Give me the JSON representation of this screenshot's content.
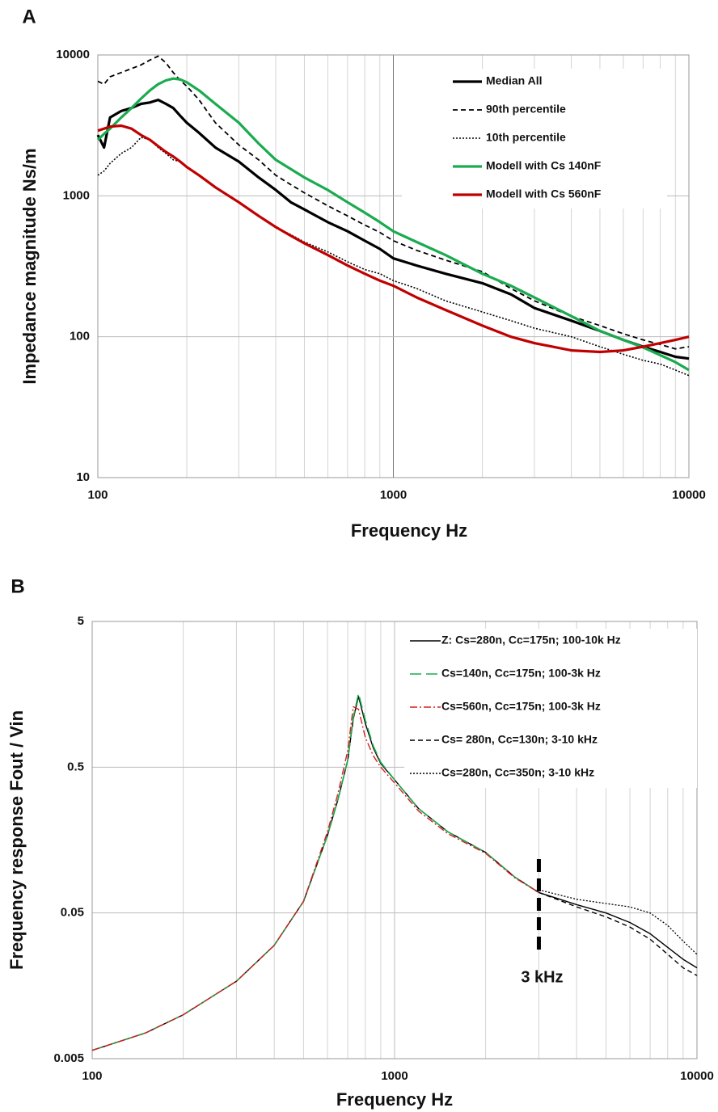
{
  "chart_data": [
    {
      "type": "line",
      "panel_label": "A",
      "x_label": "Frequency Hz",
      "y_label": "Impedance magnitude Ns/m",
      "xscale": "log",
      "yscale": "log",
      "grid": true,
      "legend": "upper right",
      "xlim": [
        100,
        10000
      ],
      "ylim": [
        10,
        10000
      ],
      "xticks": [
        100,
        1000,
        10000
      ],
      "yticks": [
        10,
        100,
        1000,
        10000
      ],
      "x_minor_ticks": [
        200,
        300,
        400,
        500,
        600,
        700,
        800,
        900,
        2000,
        3000,
        4000,
        5000,
        6000,
        7000,
        8000,
        9000
      ],
      "x": [
        100,
        105,
        110,
        120,
        130,
        140,
        150,
        160,
        170,
        180,
        190,
        200,
        220,
        250,
        300,
        350,
        400,
        450,
        500,
        600,
        700,
        800,
        900,
        1000,
        1200,
        1500,
        2000,
        2500,
        3000,
        4000,
        5000,
        6000,
        7000,
        8000,
        9000,
        10000
      ],
      "series": [
        {
          "name": "Median All",
          "color": "#000000",
          "dash": "solid",
          "linewidth": 3.2,
          "values": [
            2700,
            2200,
            3600,
            4000,
            4200,
            4500,
            4600,
            4800,
            4500,
            4200,
            3700,
            3300,
            2800,
            2200,
            1750,
            1350,
            1100,
            900,
            800,
            650,
            560,
            480,
            420,
            360,
            320,
            280,
            240,
            200,
            160,
            130,
            110,
            95,
            85,
            78,
            72,
            70
          ]
        },
        {
          "name": "90th percentile",
          "color": "#000000",
          "dash": "dashed",
          "linewidth": 1.8,
          "values": [
            6500,
            6200,
            7000,
            7500,
            8000,
            8500,
            9200,
            9800,
            8800,
            7500,
            6600,
            6000,
            4800,
            3300,
            2300,
            1800,
            1400,
            1200,
            1050,
            850,
            720,
            620,
            550,
            480,
            410,
            350,
            290,
            220,
            180,
            140,
            120,
            105,
            95,
            88,
            82,
            85
          ]
        },
        {
          "name": "10th percentile",
          "color": "#000000",
          "dash": "dotted",
          "linewidth": 1.6,
          "values": [
            1400,
            1500,
            1700,
            2000,
            2200,
            2600,
            2500,
            2200,
            2000,
            1800,
            1750,
            1600,
            1400,
            1150,
            900,
            720,
            600,
            530,
            470,
            400,
            340,
            300,
            280,
            250,
            220,
            180,
            150,
            130,
            115,
            100,
            85,
            75,
            68,
            64,
            58,
            53
          ]
        },
        {
          "name": "Modell with Cs 140nF",
          "color": "#1aab4f",
          "dash": "solid",
          "linewidth": 3.2,
          "values": [
            2500,
            2750,
            3000,
            3600,
            4200,
            4900,
            5600,
            6200,
            6600,
            6800,
            6700,
            6400,
            5600,
            4500,
            3300,
            2350,
            1800,
            1550,
            1350,
            1100,
            900,
            760,
            650,
            560,
            470,
            380,
            280,
            230,
            190,
            140,
            110,
            95,
            84,
            74,
            66,
            58
          ]
        },
        {
          "name": "Modell with Cs 560nF",
          "color": "#c00000",
          "dash": "solid",
          "linewidth": 3.2,
          "values": [
            2900,
            3000,
            3100,
            3150,
            3000,
            2700,
            2500,
            2250,
            2050,
            1900,
            1750,
            1600,
            1400,
            1150,
            900,
            720,
            600,
            520,
            460,
            380,
            320,
            280,
            250,
            230,
            190,
            155,
            120,
            100,
            90,
            80,
            78,
            80,
            85,
            90,
            95,
            100
          ]
        }
      ]
    },
    {
      "type": "line",
      "panel_label": "B",
      "x_label": "Frequency Hz",
      "y_label": "Frequency response Fout / Vin",
      "xscale": "log",
      "yscale": "log",
      "grid": true,
      "legend": "upper right",
      "xlim": [
        100,
        10000
      ],
      "ylim": [
        0.005,
        5
      ],
      "xticks": [
        100,
        1000,
        10000
      ],
      "yticks": [
        0.005,
        0.05,
        0.5,
        5
      ],
      "x_minor_ticks": [
        200,
        300,
        400,
        500,
        600,
        700,
        800,
        900,
        2000,
        3000,
        4000,
        5000,
        6000,
        7000,
        8000,
        9000
      ],
      "annotation": {
        "text": "3 kHz",
        "x": 3000
      },
      "x": [
        100,
        150,
        200,
        300,
        400,
        500,
        600,
        650,
        700,
        730,
        760,
        800,
        850,
        900,
        1000,
        1200,
        1500,
        2000,
        2500,
        3000,
        4000,
        5000,
        6000,
        7000,
        8000,
        9000,
        10000
      ],
      "series": [
        {
          "name": "Z: Cs=280n, Cc=175n; 100-10k Hz",
          "color": "#000000",
          "dash": "solid",
          "linewidth": 1.4,
          "values": [
            0.0057,
            0.0075,
            0.01,
            0.017,
            0.03,
            0.06,
            0.17,
            0.3,
            0.56,
            1.07,
            1.53,
            1.0,
            0.68,
            0.53,
            0.41,
            0.26,
            0.18,
            0.13,
            0.088,
            0.069,
            0.057,
            0.05,
            0.043,
            0.036,
            0.029,
            0.024,
            0.021
          ]
        },
        {
          "name": "Cs=140n, Cc=175n; 100-3k Hz",
          "color": "#1aab4f",
          "dash": "longdash",
          "linewidth": 1.6,
          "values": [
            0.0057,
            0.0075,
            0.01,
            0.017,
            0.03,
            0.06,
            0.17,
            0.3,
            0.56,
            1.1,
            1.6,
            1.05,
            0.7,
            0.54,
            0.41,
            0.26,
            0.18,
            0.13,
            0.088,
            0.069,
            null,
            null,
            null,
            null,
            null,
            null,
            null
          ]
        },
        {
          "name": "Cs=560n, Cc=175n; 100-3k Hz",
          "color": "#d42020",
          "dash": "dashdot",
          "linewidth": 1.4,
          "values": [
            0.0057,
            0.0075,
            0.01,
            0.017,
            0.03,
            0.06,
            0.18,
            0.33,
            0.65,
            1.3,
            1.25,
            0.8,
            0.6,
            0.5,
            0.39,
            0.25,
            0.175,
            0.128,
            0.087,
            0.069,
            null,
            null,
            null,
            null,
            null,
            null,
            null
          ]
        },
        {
          "name": "Cs= 280n, Cc=130n; 3-10 kHz",
          "color": "#000000",
          "dash": "dashed",
          "linewidth": 1.4,
          "values": [
            null,
            null,
            null,
            null,
            null,
            null,
            null,
            null,
            null,
            null,
            null,
            null,
            null,
            null,
            null,
            null,
            null,
            null,
            null,
            0.069,
            0.055,
            0.047,
            0.04,
            0.033,
            0.026,
            0.021,
            0.0186
          ]
        },
        {
          "name": "Cs=280n, Cc=350n; 3-10 kHz",
          "color": "#000000",
          "dash": "dotted",
          "linewidth": 1.3,
          "values": [
            null,
            null,
            null,
            null,
            null,
            null,
            null,
            null,
            null,
            null,
            null,
            null,
            null,
            null,
            null,
            null,
            null,
            null,
            null,
            0.072,
            0.062,
            0.058,
            0.055,
            0.05,
            0.041,
            0.032,
            0.026
          ]
        }
      ]
    }
  ]
}
